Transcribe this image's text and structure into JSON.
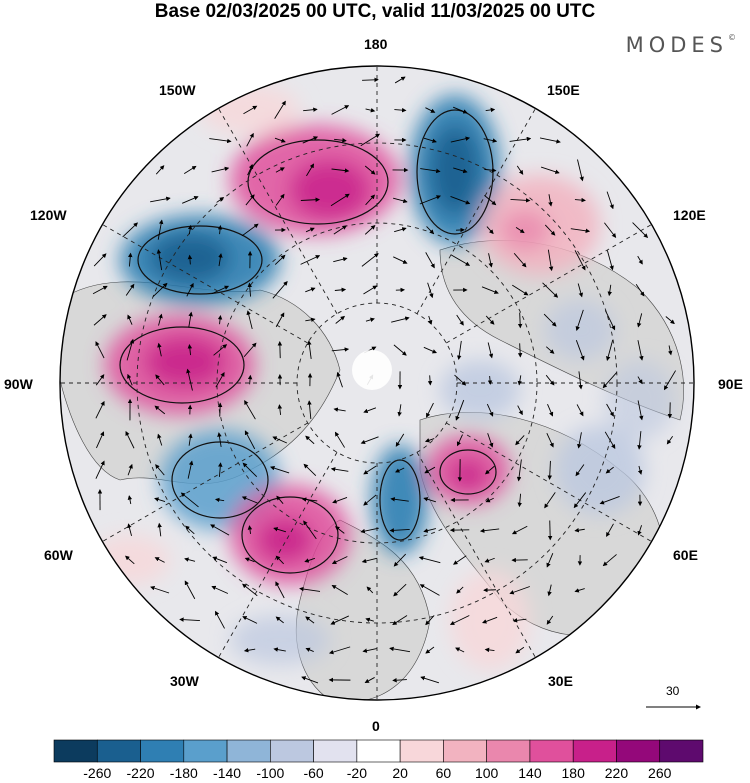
{
  "title": "Base 02/03/2025 00 UTC, valid 11/03/2025 00 UTC",
  "brand": "MODES",
  "brand_mark": "©",
  "longitude_labels": {
    "l180": "180",
    "l150e": "150E",
    "l120e": "120E",
    "l90e": "90E",
    "l60e": "60E",
    "l30e": "30E",
    "l0": "0",
    "l30w": "30W",
    "l60w": "60W",
    "l90w": "90W",
    "l120w": "120W",
    "l150w": "150W"
  },
  "reference_vector": {
    "label": "30"
  },
  "colorbar": {
    "ticks": [
      "-260",
      "-220",
      "-180",
      "-140",
      "-100",
      "-60",
      "-20",
      "20",
      "60",
      "100",
      "140",
      "180",
      "220",
      "260"
    ],
    "colors": [
      "#0c3b5e",
      "#1a5f8f",
      "#2f7fb3",
      "#5a9fcc",
      "#8fb5d8",
      "#bcc8e0",
      "#e2e2ef",
      "#ffffff",
      "#f8d7da",
      "#f2b3c0",
      "#ea87ad",
      "#e0509c",
      "#c8208a",
      "#94087a",
      "#5e0a6e"
    ]
  },
  "colors": {
    "land": "#dcdcdc",
    "ocean": "#ffffff",
    "outline": "#000000"
  }
}
